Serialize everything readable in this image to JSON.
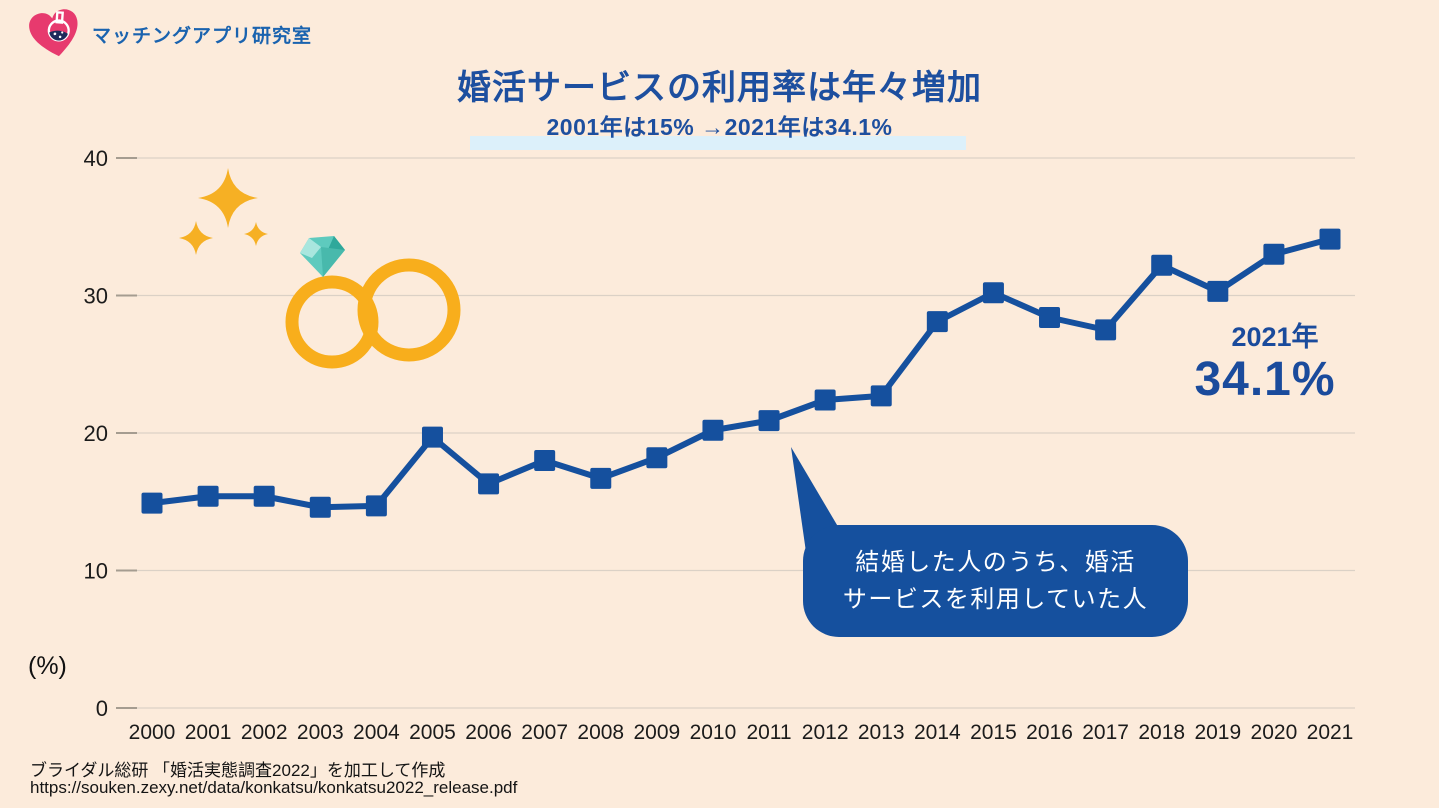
{
  "brand": {
    "name": "マッチングアプリ研究室"
  },
  "header": {
    "title": "婚活サービスの利用率は年々増加",
    "subtitle": "2001年は15% →2021年は34.1%"
  },
  "annotation": {
    "year": "2021年",
    "value": "34.1%"
  },
  "bubble": {
    "line1": "結婚した人のうち、婚活",
    "line2": "サービスを利用していた人"
  },
  "axis": {
    "unit": "(%)"
  },
  "source": {
    "line1": "ブライダル総研 「婚活実態調査2022」を加工して作成",
    "line2": "https://souken.zexy.net/data/konkatsu/konkatsu2022_release.pdf"
  },
  "colors": {
    "background": "#fcebdb",
    "line": "#15509e",
    "title_blue": "#1d4f9f",
    "bubble_blue": "#15509e",
    "brand_pink": "#e73a6e",
    "gold": "#f6ae1c",
    "highlight": "#dcf0fa",
    "gridline": "#dbd1c6"
  },
  "icons": {
    "logo": "heart-flask-icon",
    "decor": [
      "sparkles-icon",
      "wedding-rings-icon",
      "diamond-icon"
    ]
  },
  "chart_data": {
    "type": "line",
    "title": "婚活サービスの利用率は年々増加",
    "subtitle": "2001年は15% →2021年は34.1%",
    "xlabel": "",
    "ylabel": "(%)",
    "ylim": [
      0,
      40
    ],
    "yticks": [
      0,
      10,
      20,
      30,
      40
    ],
    "grid": true,
    "marker": "square",
    "legend": "none",
    "series_note": "結婚した人のうち、婚活サービスを利用していた人",
    "categories": [
      "2000",
      "2001",
      "2002",
      "2003",
      "2004",
      "2005",
      "2006",
      "2007",
      "2008",
      "2009",
      "2010",
      "2011",
      "2012",
      "2013",
      "2014",
      "2015",
      "2016",
      "2017",
      "2018",
      "2019",
      "2020",
      "2021"
    ],
    "values": [
      14.9,
      15.4,
      15.4,
      14.6,
      14.7,
      19.7,
      16.3,
      18.0,
      16.7,
      18.2,
      20.2,
      20.9,
      22.4,
      22.7,
      28.1,
      30.2,
      28.4,
      27.5,
      32.2,
      30.3,
      33.0,
      34.1
    ]
  }
}
